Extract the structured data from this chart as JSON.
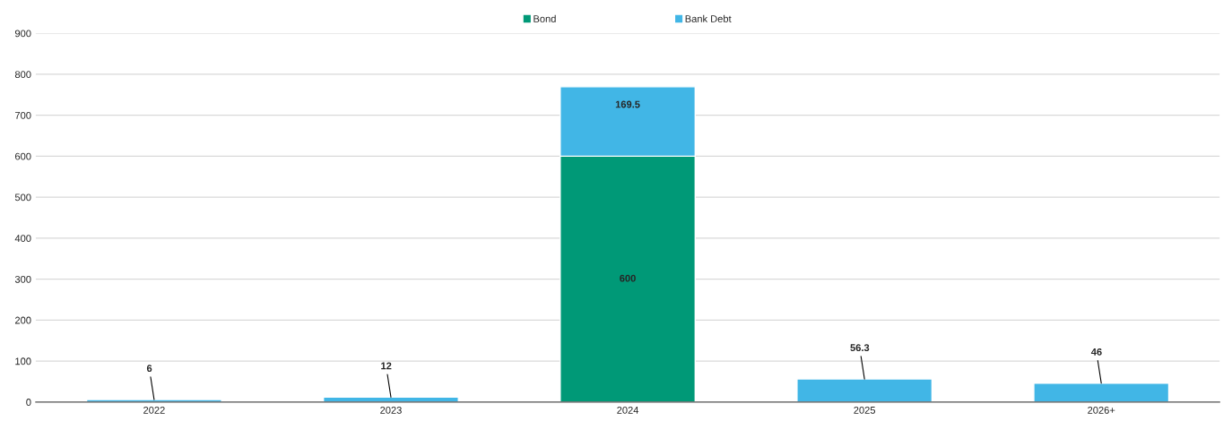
{
  "chart_data": {
    "type": "bar",
    "stacked": true,
    "categories": [
      "2022",
      "2023",
      "2024",
      "2025",
      "2026+"
    ],
    "series": [
      {
        "name": "Bond",
        "color": "#009977",
        "values": [
          0,
          0,
          600,
          0,
          0
        ],
        "value_labels": [
          null,
          null,
          "600",
          null,
          null
        ]
      },
      {
        "name": "Bank Debt",
        "color": "#41b6e6",
        "values": [
          6,
          12,
          169.5,
          56.3,
          46
        ],
        "value_labels": [
          "6",
          "12",
          "169.5",
          "56.3",
          "46"
        ]
      }
    ],
    "ylim": [
      0,
      900
    ],
    "yticks": [
      0,
      100,
      200,
      300,
      400,
      500,
      600,
      700,
      800,
      900
    ],
    "grid": "y",
    "legend": "top"
  }
}
